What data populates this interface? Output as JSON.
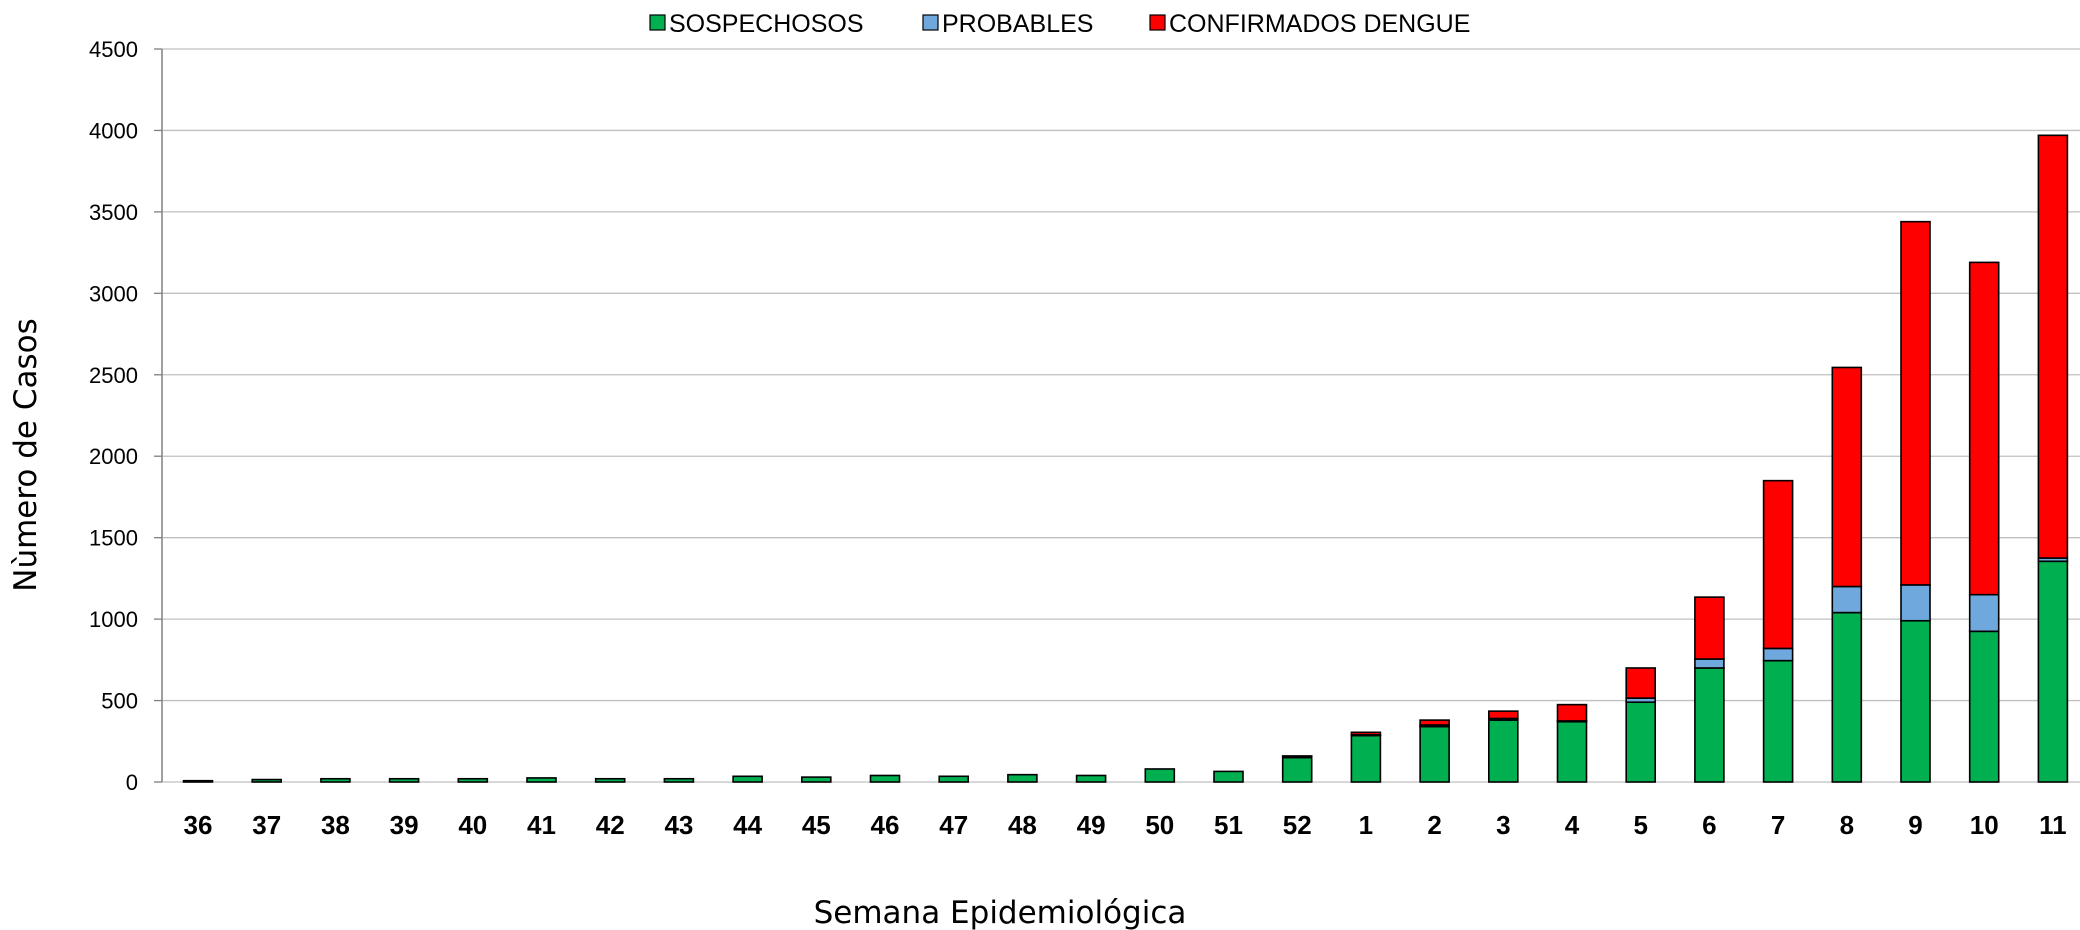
{
  "chart_data": {
    "type": "bar",
    "stacked": true,
    "xlabel": "Semana Epidemiológica",
    "ylabel": "Nùmero de Casos",
    "ylim": [
      0,
      4500
    ],
    "yticks": [
      "0",
      "500",
      "1000",
      "1500",
      "2000",
      "2500",
      "3000",
      "3500",
      "4000",
      "4500"
    ],
    "grid": "horizontal",
    "legend_position": "top",
    "categories": [
      "36",
      "37",
      "38",
      "39",
      "40",
      "41",
      "42",
      "43",
      "44",
      "45",
      "46",
      "47",
      "48",
      "49",
      "50",
      "51",
      "52",
      "1",
      "2",
      "3",
      "4",
      "5",
      "6",
      "7",
      "8",
      "9",
      "10",
      "11"
    ],
    "series": [
      {
        "name": "SOSPECHOSOS",
        "color": "#00b050",
        "values": [
          8,
          15,
          20,
          20,
          20,
          25,
          20,
          20,
          35,
          30,
          40,
          35,
          45,
          40,
          80,
          65,
          150,
          285,
          340,
          380,
          370,
          490,
          700,
          745,
          1040,
          990,
          925,
          1355
        ]
      },
      {
        "name": "PROBABLES",
        "color": "#6fa8dc",
        "values": [
          0,
          0,
          0,
          0,
          0,
          0,
          0,
          0,
          0,
          0,
          0,
          0,
          0,
          0,
          0,
          0,
          0,
          5,
          10,
          10,
          5,
          25,
          55,
          75,
          160,
          220,
          225,
          20
        ]
      },
      {
        "name": "CONFIRMADOS DENGUE",
        "color": "#ff0000",
        "values": [
          0,
          0,
          0,
          0,
          0,
          0,
          0,
          0,
          0,
          0,
          0,
          0,
          0,
          0,
          0,
          0,
          10,
          15,
          30,
          45,
          100,
          185,
          380,
          1030,
          1345,
          2230,
          2040,
          2595
        ]
      }
    ]
  }
}
